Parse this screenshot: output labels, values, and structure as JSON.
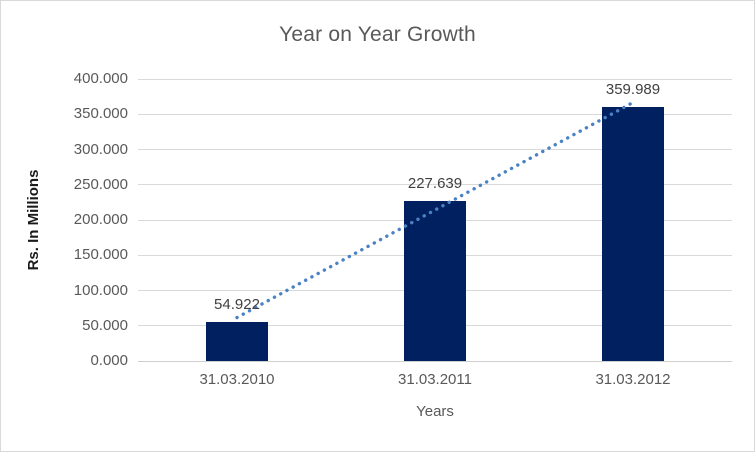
{
  "chart_data": {
    "type": "bar",
    "title": "Year on Year Growth",
    "xlabel": "Years",
    "ylabel": "Rs. In Millions",
    "categories": [
      "31.03.2010",
      "31.03.2011",
      "31.03.2012"
    ],
    "values": [
      54.922,
      227.639,
      359.989
    ],
    "data_labels": [
      "54.922",
      "227.639",
      "359.989"
    ],
    "y_ticks": [
      "400.000",
      "350.000",
      "300.000",
      "250.000",
      "200.000",
      "150.000",
      "100.000",
      "50.000",
      "0.000"
    ],
    "ylim": [
      0,
      400
    ],
    "grid": "horizontal",
    "legend": "none",
    "trendline": "linear-dotted",
    "colors": {
      "bar": "#002060",
      "trendline": "#4a82c4",
      "gridline": "#d9d9d9",
      "axis_line": "#cfcfcf",
      "title_text": "#595959",
      "tick_text": "#595959",
      "data_label_text": "#404040",
      "y_axis_title_text": "#1a1a1a",
      "chart_border": "#d9d9d9",
      "background": "#ffffff"
    }
  }
}
